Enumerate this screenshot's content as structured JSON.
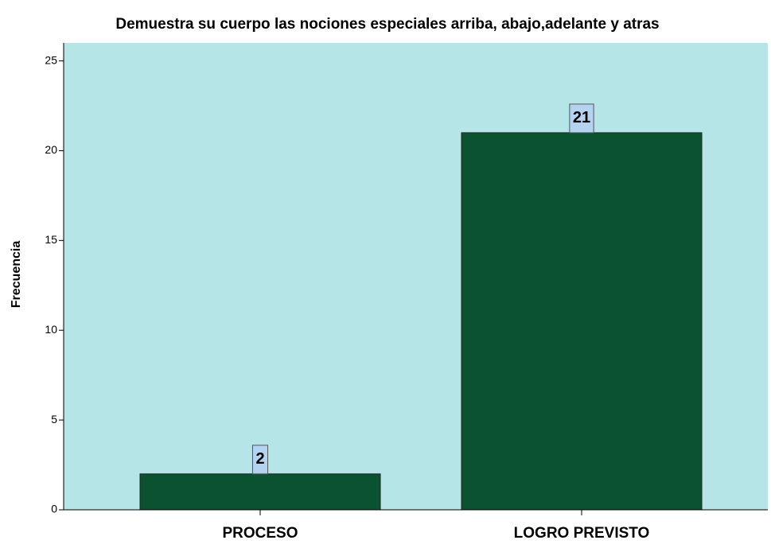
{
  "chart_data": {
    "type": "bar",
    "title": "Demuestra su cuerpo las nociones especiales arriba, abajo,adelante y atras",
    "y_label": "Frecuencia",
    "categories": [
      "PROCESO",
      "LOGRO PREVISTO"
    ],
    "values": [
      2,
      21
    ],
    "color": "#0b5330",
    "background": "#b5e5e7",
    "ylim": [
      0,
      26
    ],
    "yticks": [
      0,
      5,
      10,
      15,
      20,
      25
    ]
  }
}
